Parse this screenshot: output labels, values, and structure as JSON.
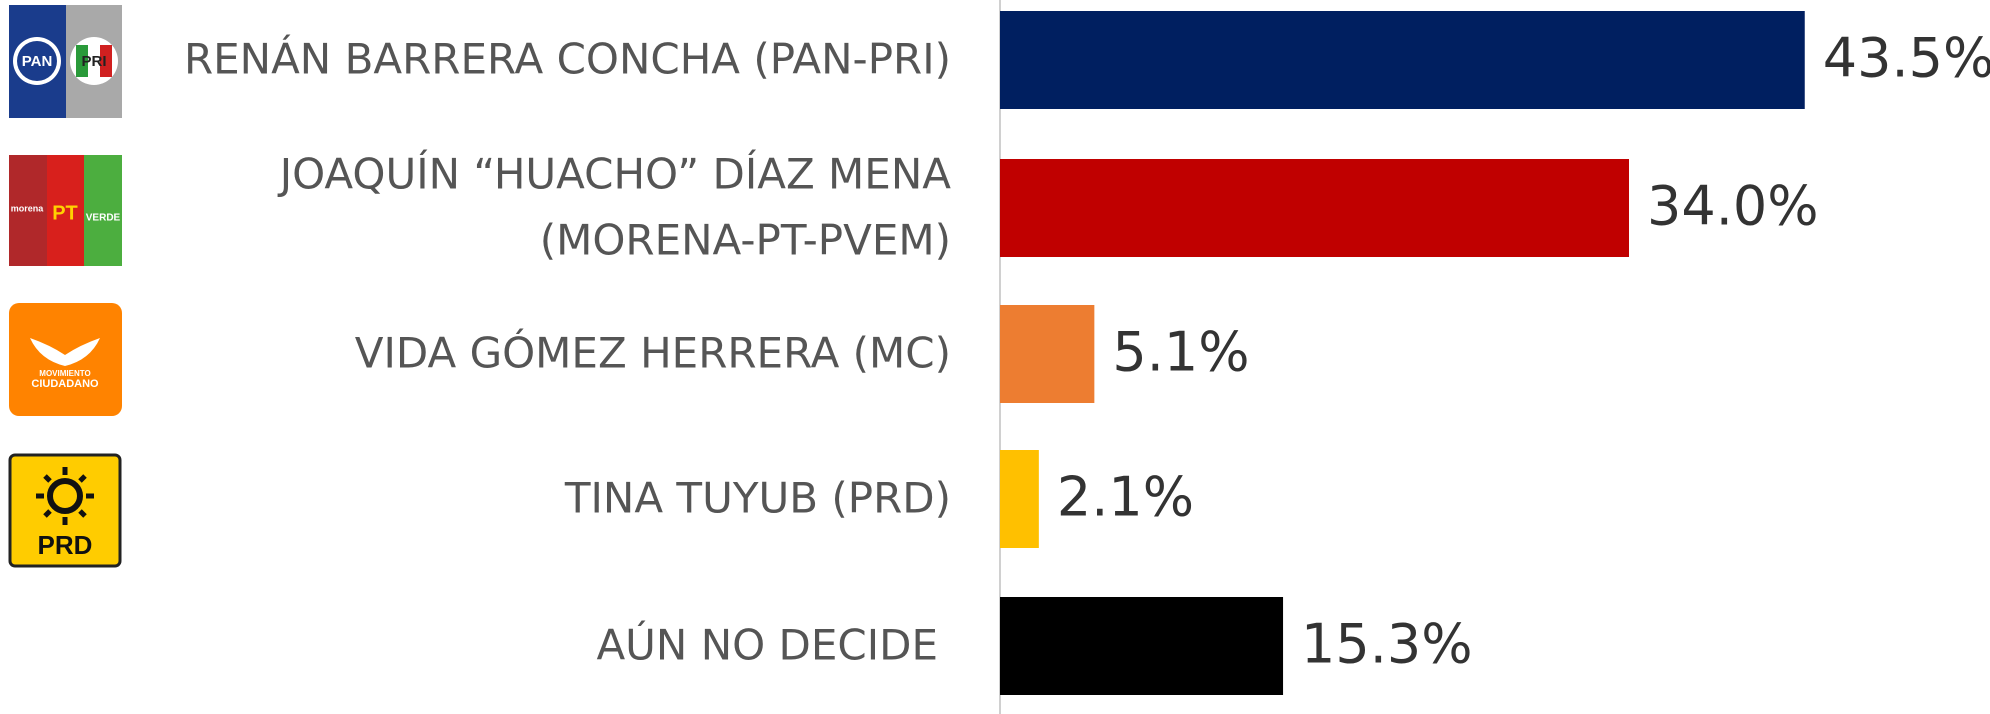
{
  "chart_data": {
    "type": "bar",
    "orientation": "horizontal",
    "categories": [
      [
        "RENÁN BARRERA CONCHA  (PAN-PRI)"
      ],
      [
        "JOAQUÍN “HUACHO” DÍAZ MENA",
        "(MORENA-PT-PVEM)"
      ],
      [
        "VIDA GÓMEZ HERRERA (MC)"
      ],
      [
        "TINA TUYUB (PRD)"
      ],
      [
        "AÚN NO DECIDE"
      ]
    ],
    "values": [
      43.5,
      34.0,
      5.1,
      2.1,
      15.3
    ],
    "value_labels": [
      "43.5%",
      "34.0%",
      "5.1%",
      "2.1%",
      "15.3%"
    ],
    "colors": [
      "#001f60",
      "#c00000",
      "#ed7d31",
      "#ffc000",
      "#000000"
    ],
    "logos": [
      [
        "PAN",
        "PRI"
      ],
      [
        "morena",
        "PT",
        "VERDE"
      ],
      [
        "MOVIMIENTO",
        "CIUDADANO"
      ],
      [
        "PRD"
      ]
    ]
  }
}
